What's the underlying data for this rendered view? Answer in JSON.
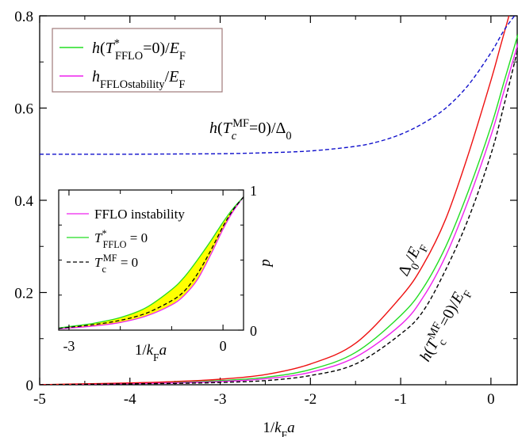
{
  "chart_data": [
    {
      "type": "line",
      "xlabel": "1/k_F a",
      "ylabel": "",
      "xlim": [
        -5,
        0.3
      ],
      "ylim": [
        0,
        0.8
      ],
      "xticks": [
        -5,
        -4,
        -3,
        -2,
        -1,
        0
      ],
      "xtick_labels": [
        "-5",
        "-4",
        "-3",
        "-2",
        "-1",
        "0"
      ],
      "yticks": [
        0,
        0.2,
        0.4,
        0.6,
        0.8
      ],
      "ytick_labels": [
        "0",
        "0.2",
        "0.4",
        "0.6",
        "0.8"
      ],
      "grid": false,
      "legend_position": "top-left",
      "legend": [
        "h(T*FFLO=0)/EF",
        "hFFLOstability/EF"
      ],
      "series": [
        {
          "name": "h(T*FFLO=0)/EF",
          "color": "#22dd22",
          "dash": "solid",
          "x": [
            -5,
            -4.5,
            -4,
            -3.5,
            -3,
            -2.5,
            -2,
            -1.5,
            -1,
            -0.75,
            -0.5,
            -0.25,
            0,
            0.15,
            0.3
          ],
          "y": [
            0.0,
            0.0015,
            0.003,
            0.005,
            0.009,
            0.016,
            0.033,
            0.07,
            0.15,
            0.21,
            0.3,
            0.42,
            0.56,
            0.66,
            0.76
          ]
        },
        {
          "name": "hFFLOstability/EF",
          "color": "#ee22ee",
          "dash": "solid",
          "x": [
            -5,
            -4.5,
            -4,
            -3.5,
            -3,
            -2.5,
            -2,
            -1.5,
            -1,
            -0.75,
            -0.5,
            -0.25,
            0,
            0.15,
            0.3
          ],
          "y": [
            0.0,
            0.0012,
            0.0025,
            0.004,
            0.007,
            0.013,
            0.027,
            0.06,
            0.13,
            0.19,
            0.28,
            0.4,
            0.54,
            0.64,
            0.74
          ]
        },
        {
          "name": "Δ0/EF",
          "color": "#ee1111",
          "dash": "solid",
          "x": [
            -5,
            -4.5,
            -4,
            -3.5,
            -3,
            -2.5,
            -2,
            -1.5,
            -1,
            -0.75,
            -0.5,
            -0.25,
            0,
            0.1,
            0.2
          ],
          "y": [
            0.0,
            0.002,
            0.004,
            0.007,
            0.012,
            0.022,
            0.045,
            0.09,
            0.19,
            0.26,
            0.36,
            0.5,
            0.66,
            0.73,
            0.8
          ]
        },
        {
          "name": "h(Tc^MF=0)/EF",
          "color": "#000000",
          "dash": "dashed",
          "x": [
            -5,
            -4.5,
            -4,
            -3.5,
            -3,
            -2.5,
            -2,
            -1.5,
            -1,
            -0.75,
            -0.5,
            -0.25,
            0,
            0.15,
            0.3
          ],
          "y": [
            0.0,
            0.001,
            0.002,
            0.003,
            0.005,
            0.009,
            0.02,
            0.045,
            0.11,
            0.16,
            0.25,
            0.36,
            0.5,
            0.61,
            0.73
          ]
        },
        {
          "name": "h(Tc^MF=0)/Δ0",
          "color": "#1111cc",
          "dash": "dashed",
          "x": [
            -5,
            -4,
            -3.5,
            -3,
            -2.5,
            -2,
            -1.5,
            -1.25,
            -1,
            -0.75,
            -0.5,
            -0.25,
            0,
            0.15,
            0.3
          ],
          "y": [
            0.5,
            0.5,
            0.5005,
            0.501,
            0.503,
            0.507,
            0.517,
            0.527,
            0.543,
            0.567,
            0.6,
            0.65,
            0.72,
            0.77,
            0.81
          ]
        }
      ],
      "annotations": [
        {
          "text": "h(Tc^MF=0)/Δ0",
          "color": "#1111cc"
        },
        {
          "text": "Δ0/EF",
          "color": "#ee1111"
        },
        {
          "text": "h(Tc^MF=0)/EF",
          "color": "#000000"
        }
      ]
    },
    {
      "type": "line",
      "xlabel": "1/k_F a",
      "ylabel": "p",
      "xlim": [
        -3.2,
        0.4
      ],
      "ylim": [
        0,
        1
      ],
      "xticks": [
        -3,
        0
      ],
      "xtick_labels": [
        "-3",
        "0"
      ],
      "yticks": [
        0,
        1
      ],
      "ytick_labels": [
        "0",
        "1"
      ],
      "grid": false,
      "legend_position": "top-left",
      "legend": [
        "FFLO instability",
        "T*FFLO = 0",
        "Tc^MF = 0"
      ],
      "fill_between": {
        "upper": "T*FFLO = 0",
        "lower": "FFLO instability",
        "color": "#ffff00"
      },
      "series": [
        {
          "name": "FFLO instability",
          "color": "#ee22ee",
          "dash": "solid",
          "x": [
            -3.2,
            -3,
            -2.5,
            -2,
            -1.5,
            -1,
            -0.75,
            -0.5,
            -0.25,
            0,
            0.2,
            0.4
          ],
          "y": [
            0.01,
            0.015,
            0.03,
            0.055,
            0.1,
            0.18,
            0.25,
            0.36,
            0.53,
            0.72,
            0.85,
            0.95
          ]
        },
        {
          "name": "T*FFLO = 0",
          "color": "#22dd22",
          "dash": "solid",
          "x": [
            -3.2,
            -3,
            -2.5,
            -2,
            -1.5,
            -1,
            -0.75,
            -0.5,
            -0.25,
            0,
            0.2,
            0.4
          ],
          "y": [
            0.015,
            0.025,
            0.05,
            0.09,
            0.16,
            0.29,
            0.38,
            0.5,
            0.63,
            0.77,
            0.87,
            0.95
          ]
        },
        {
          "name": "Tc^MF = 0",
          "color": "#000000",
          "dash": "dashed",
          "x": [
            -3.2,
            -3,
            -2.5,
            -2,
            -1.5,
            -1,
            -0.75,
            -0.5,
            -0.25,
            0,
            0.2,
            0.4
          ],
          "y": [
            0.012,
            0.02,
            0.04,
            0.07,
            0.12,
            0.21,
            0.28,
            0.4,
            0.56,
            0.74,
            0.86,
            0.95
          ]
        }
      ]
    }
  ]
}
